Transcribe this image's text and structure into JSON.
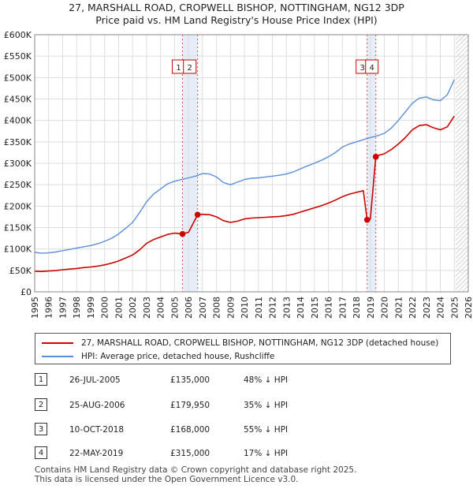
{
  "title_line1": "27, MARSHALL ROAD, CROPWELL BISHOP, NOTTINGHAM, NG12 3DP",
  "title_line2": "Price paid vs. HM Land Registry's House Price Index (HPI)",
  "legend": {
    "property_label": "27, MARSHALL ROAD, CROPWELL BISHOP, NOTTINGHAM, NG12 3DP (detached house)",
    "hpi_label": "HPI: Average price, detached house, Rushcliffe"
  },
  "sales": [
    {
      "num": "1",
      "date": "26-JUL-2005",
      "price": "£135,000",
      "hpi": "48% ↓ HPI"
    },
    {
      "num": "2",
      "date": "25-AUG-2006",
      "price": "£179,950",
      "hpi": "35% ↓ HPI"
    },
    {
      "num": "3",
      "date": "10-OCT-2018",
      "price": "£168,000",
      "hpi": "55% ↓ HPI"
    },
    {
      "num": "4",
      "date": "22-MAY-2019",
      "price": "£315,000",
      "hpi": "17% ↓ HPI"
    }
  ],
  "footer": {
    "line1": "Contains HM Land Registry data © Crown copyright and database right 2025.",
    "line2": "This data is licensed under the Open Government Licence v3.0."
  },
  "colors": {
    "property": "#cc0000",
    "hpi": "#5b8fd6",
    "marker_band": "#dce6f5"
  },
  "chart_data": {
    "type": "line",
    "xlim": [
      1995,
      2026
    ],
    "ylim": [
      0,
      600000
    ],
    "x_ticks": [
      "1995",
      "1996",
      "1997",
      "1998",
      "1999",
      "2000",
      "2001",
      "2002",
      "2003",
      "2004",
      "2005",
      "2006",
      "2007",
      "2008",
      "2009",
      "2010",
      "2011",
      "2012",
      "2013",
      "2014",
      "2015",
      "2016",
      "2017",
      "2018",
      "2019",
      "2020",
      "2021",
      "2022",
      "2023",
      "2024",
      "2025",
      "2026"
    ],
    "y_ticks": [
      {
        "value": 0,
        "label": "£0"
      },
      {
        "value": 50000,
        "label": "£50K"
      },
      {
        "value": 100000,
        "label": "£100K"
      },
      {
        "value": 150000,
        "label": "£150K"
      },
      {
        "value": 200000,
        "label": "£200K"
      },
      {
        "value": 250000,
        "label": "£250K"
      },
      {
        "value": 300000,
        "label": "£300K"
      },
      {
        "value": 350000,
        "label": "£350K"
      },
      {
        "value": 400000,
        "label": "£400K"
      },
      {
        "value": 450000,
        "label": "£450K"
      },
      {
        "value": 500000,
        "label": "£500K"
      },
      {
        "value": 550000,
        "label": "£550K"
      },
      {
        "value": 600000,
        "label": "£600K"
      }
    ],
    "forecast_start": 2025.1,
    "series": [
      {
        "name": "HPI: Average price, detached house, Rushcliffe",
        "x": [
          1995.0,
          1995.5,
          1996.0,
          1996.5,
          1997.0,
          1997.5,
          1998.0,
          1998.5,
          1999.0,
          1999.5,
          2000.0,
          2000.5,
          2001.0,
          2001.5,
          2002.0,
          2002.5,
          2003.0,
          2003.5,
          2004.0,
          2004.5,
          2005.0,
          2005.5,
          2006.0,
          2006.5,
          2007.0,
          2007.5,
          2008.0,
          2008.5,
          2009.0,
          2009.5,
          2010.0,
          2010.5,
          2011.0,
          2011.5,
          2012.0,
          2012.5,
          2013.0,
          2013.5,
          2014.0,
          2014.5,
          2015.0,
          2015.5,
          2016.0,
          2016.5,
          2017.0,
          2017.5,
          2018.0,
          2018.5,
          2019.0,
          2019.5,
          2020.0,
          2020.5,
          2021.0,
          2021.5,
          2022.0,
          2022.5,
          2023.0,
          2023.5,
          2024.0,
          2024.5,
          2025.0
        ],
        "values": [
          92000,
          90000,
          91000,
          93000,
          96000,
          99000,
          102000,
          105000,
          108000,
          112000,
          118000,
          125000,
          135000,
          148000,
          162000,
          185000,
          210000,
          228000,
          240000,
          252000,
          258000,
          262000,
          266000,
          270000,
          276000,
          275000,
          268000,
          255000,
          250000,
          256000,
          262000,
          265000,
          266000,
          268000,
          270000,
          272000,
          275000,
          280000,
          287000,
          294000,
          300000,
          307000,
          315000,
          325000,
          338000,
          345000,
          350000,
          355000,
          360000,
          364000,
          370000,
          382000,
          400000,
          420000,
          440000,
          452000,
          455000,
          448000,
          446000,
          460000,
          495000
        ]
      },
      {
        "name": "27, MARSHALL ROAD, CROPWELL BISHOP, NOTTINGHAM, NG12 3DP (detached house)",
        "x": [
          1995.0,
          1995.5,
          1996.0,
          1996.5,
          1997.0,
          1997.5,
          1998.0,
          1998.5,
          1999.0,
          1999.5,
          2000.0,
          2000.5,
          2001.0,
          2001.5,
          2002.0,
          2002.5,
          2003.0,
          2003.5,
          2004.0,
          2004.5,
          2005.0,
          2005.57,
          2006.0,
          2006.65,
          2007.0,
          2007.5,
          2008.0,
          2008.5,
          2009.0,
          2009.5,
          2010.0,
          2010.5,
          2011.0,
          2011.5,
          2012.0,
          2012.5,
          2013.0,
          2013.5,
          2014.0,
          2014.5,
          2015.0,
          2015.5,
          2016.0,
          2016.5,
          2017.0,
          2017.5,
          2018.0,
          2018.5,
          2018.77,
          2019.0,
          2019.39,
          2019.5,
          2020.0,
          2020.5,
          2021.0,
          2021.5,
          2022.0,
          2022.5,
          2023.0,
          2023.5,
          2024.0,
          2024.5,
          2025.0
        ],
        "values": [
          48000,
          47500,
          48500,
          49500,
          51500,
          53000,
          54500,
          56500,
          58000,
          60000,
          63000,
          67000,
          72000,
          79000,
          86000,
          98000,
          113000,
          122000,
          128000,
          134000,
          137000,
          135000,
          139000,
          179950,
          181000,
          180000,
          175000,
          166000,
          162000,
          165000,
          170000,
          172000,
          173000,
          174000,
          175000,
          176000,
          178000,
          181000,
          186000,
          191000,
          196000,
          201000,
          207000,
          214000,
          222000,
          228000,
          232000,
          236000,
          168000,
          170000,
          315000,
          318000,
          322000,
          332000,
          345000,
          360000,
          378000,
          388000,
          390000,
          383000,
          378000,
          385000,
          410000
        ]
      }
    ],
    "sale_markers": [
      {
        "num": "1",
        "x": 2005.57,
        "value": 135000
      },
      {
        "num": "2",
        "x": 2006.65,
        "value": 179950
      },
      {
        "num": "3",
        "x": 2018.77,
        "value": 168000
      },
      {
        "num": "4",
        "x": 2019.39,
        "value": 315000
      }
    ]
  }
}
